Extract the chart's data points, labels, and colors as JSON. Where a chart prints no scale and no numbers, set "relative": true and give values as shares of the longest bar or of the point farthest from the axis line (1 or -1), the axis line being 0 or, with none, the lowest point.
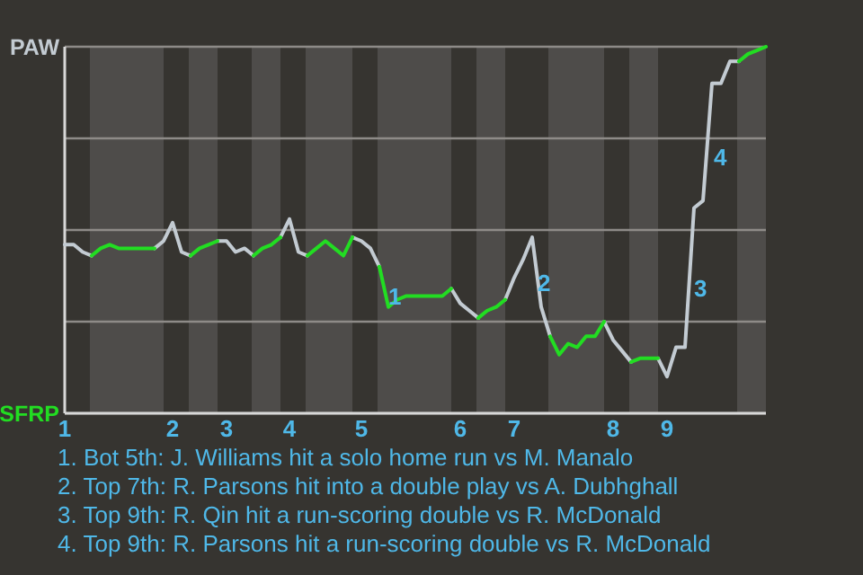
{
  "chart_data": {
    "type": "line",
    "relative": true,
    "categories": [
      "1",
      null,
      null,
      null,
      null,
      null,
      null,
      null,
      null,
      null,
      null,
      null,
      "2",
      null,
      null,
      null,
      null,
      null,
      "3",
      null,
      null,
      null,
      null,
      null,
      null,
      "4",
      null,
      null,
      null,
      null,
      null,
      null,
      null,
      "5",
      null,
      null,
      null,
      null,
      null,
      null,
      null,
      null,
      null,
      null,
      "6",
      null,
      null,
      null,
      null,
      null,
      "7",
      null,
      null,
      null,
      null,
      null,
      null,
      null,
      null,
      null,
      null,
      "8",
      null,
      null,
      null,
      null,
      null,
      "9",
      null,
      null,
      null,
      null,
      null,
      null,
      null,
      null,
      null,
      null,
      null
    ],
    "grid": "y",
    "marker": "none",
    "line_style": "solid",
    "series": [
      {
        "color": "#c3cbd2",
        "values": [
          0.46,
          0.46,
          0.44,
          0.43,
          null,
          null,
          null,
          null,
          null,
          null,
          0.45,
          0.47,
          0.52,
          0.44,
          0.43,
          null,
          null,
          0.47,
          0.47,
          0.44,
          0.45,
          0.43,
          null,
          null,
          0.48,
          0.53,
          0.44,
          0.43,
          null,
          null,
          null,
          null,
          0.48,
          0.47,
          0.45,
          0.4,
          null,
          null,
          null,
          null,
          null,
          null,
          null,
          0.34,
          0.3,
          0.28,
          0.26,
          null,
          null,
          0.31,
          0.37,
          0.42,
          0.48,
          0.29,
          0.21,
          null,
          null,
          null,
          null,
          null,
          0.25,
          0.2,
          0.17,
          0.14,
          null,
          null,
          0.15,
          0.1,
          0.18,
          0.18,
          0.56,
          0.58,
          0.9,
          0.9,
          0.96,
          0.96,
          null,
          null,
          null
        ]
      },
      {
        "color": "#22dd22",
        "values": [
          null,
          null,
          null,
          0.43,
          0.45,
          0.46,
          0.45,
          0.45,
          0.45,
          0.45,
          0.45,
          null,
          null,
          null,
          0.43,
          0.45,
          0.46,
          0.47,
          null,
          null,
          null,
          0.43,
          0.45,
          0.46,
          0.48,
          null,
          null,
          0.43,
          0.45,
          0.47,
          0.45,
          0.43,
          0.48,
          null,
          null,
          0.4,
          0.29,
          0.31,
          0.32,
          0.32,
          0.32,
          0.32,
          0.32,
          0.34,
          null,
          null,
          0.26,
          0.28,
          0.29,
          0.31,
          null,
          null,
          null,
          null,
          0.21,
          0.16,
          0.19,
          0.18,
          0.21,
          0.21,
          0.25,
          null,
          null,
          0.14,
          0.15,
          0.15,
          0.15,
          null,
          null,
          null,
          null,
          null,
          null,
          null,
          null,
          0.96,
          0.98,
          0.99,
          1.0
        ]
      }
    ],
    "annotations": [
      "PAW",
      "SFRP",
      "1",
      "2",
      "3",
      "4",
      "1. Bot 5th: J. Williams hit a solo home run vs M. Manalo",
      "2. Top 7th: R. Parsons hit into a double play vs A. Dubhghall",
      "3. Top 9th: R. Qin hit a run-scoring double vs R. McDonald",
      "4. Top 9th: R. Parsons hit a run-scoring double vs R. McDonald"
    ]
  }
}
